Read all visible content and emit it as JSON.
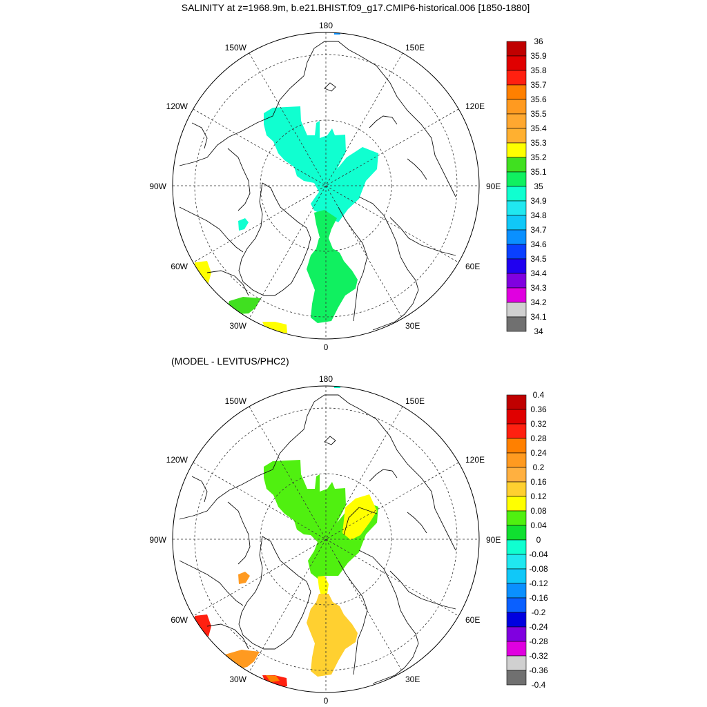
{
  "panel1": {
    "title": "SALINITY at z=1968.9m, b.e21.BHIST.f09_g17.CMIP6-historical.006 [1850-1880]",
    "lon_labels": {
      "n": "180",
      "s": "0",
      "w": "90W",
      "e": "90E",
      "w150": "150W",
      "e150": "150E",
      "w120": "120W",
      "e120": "120E",
      "w60": "60W",
      "e60": "60E",
      "w30": "30W",
      "e30": "30E"
    },
    "colorbar": {
      "labels": [
        "36",
        "35.9",
        "35.8",
        "35.7",
        "35.6",
        "35.5",
        "35.4",
        "35.3",
        "35.2",
        "35.1",
        "35",
        "34.9",
        "34.8",
        "34.7",
        "34.6",
        "34.5",
        "34.4",
        "34.3",
        "34.2",
        "34.1",
        "34"
      ],
      "colors": [
        "#c00000",
        "#e00000",
        "#ff2010",
        "#ff8000",
        "#ff9a20",
        "#ffa830",
        "#ffb030",
        "#ffff00",
        "#40e020",
        "#10f060",
        "#10ffd0",
        "#20e8f0",
        "#10c8f8",
        "#0a90ff",
        "#0a40ff",
        "#2000f0",
        "#8000e0",
        "#e000e0",
        "#d0d0d0",
        "#707070"
      ]
    },
    "regions": [
      {
        "name": "central-arctic-region",
        "color": "#10ffd0"
      },
      {
        "name": "fram-strait-region",
        "color": "#10f060"
      },
      {
        "name": "greenland-sea-region",
        "color": "#10f060"
      },
      {
        "name": "iceland-region",
        "color": "#40e020"
      },
      {
        "name": "labrador-region",
        "color": "#ffff00"
      },
      {
        "name": "north-atlantic-region",
        "color": "#ffff00"
      },
      {
        "name": "baffin-patch-region",
        "color": "#10ffd0"
      },
      {
        "name": "bering-patch-region",
        "color": "#0a90ff"
      }
    ]
  },
  "panel2": {
    "title": "(MODEL - LEVITUS/PHC2)",
    "lon_labels": {
      "n": "180",
      "s": "0",
      "w": "90W",
      "e": "90E",
      "w150": "150W",
      "e150": "150E",
      "w120": "120W",
      "e120": "120E",
      "w60": "60W",
      "e60": "60E",
      "w30": "30W",
      "e30": "30E"
    },
    "colorbar": {
      "labels": [
        "0.4",
        "0.36",
        "0.32",
        "0.28",
        "0.24",
        "0.2",
        "0.16",
        "0.12",
        "0.08",
        "0.04",
        "0",
        "-0.04",
        "-0.08",
        "-0.12",
        "-0.16",
        "-0.2",
        "-0.24",
        "-0.28",
        "-0.32",
        "-0.36",
        "-0.4"
      ],
      "colors": [
        "#c00000",
        "#e00000",
        "#ff2010",
        "#ff8000",
        "#ff9a20",
        "#ffb040",
        "#ffd030",
        "#ffff00",
        "#50f010",
        "#10e030",
        "#10ffd0",
        "#20e8f0",
        "#10c8f8",
        "#0a90ff",
        "#0a60ff",
        "#0000e0",
        "#8000e0",
        "#e000e0",
        "#d0d0d0",
        "#707070"
      ]
    },
    "regions": [
      {
        "name": "central-arctic-diff-region",
        "color": "#50f010"
      },
      {
        "name": "laptev-diff-region",
        "color": "#ffff00"
      },
      {
        "name": "fram-diff-region",
        "color": "#ffff00"
      },
      {
        "name": "greenland-sea-diff-region",
        "color": "#ffd030"
      },
      {
        "name": "iceland-diff-region",
        "color": "#ff9a20"
      },
      {
        "name": "labrador-diff-region",
        "color": "#ff2010"
      },
      {
        "name": "north-atlantic-diff-region",
        "color": "#ff2010"
      },
      {
        "name": "north-atlantic-diff-inner-region",
        "color": "#ff8000"
      },
      {
        "name": "baffin-diff-patch-region",
        "color": "#ff9a20"
      },
      {
        "name": "bering-diff-patch-region",
        "color": "#10ffd0"
      }
    ]
  }
}
